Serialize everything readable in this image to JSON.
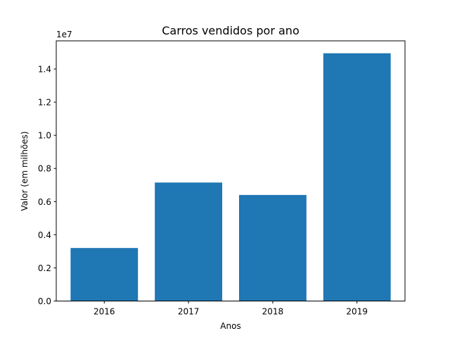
{
  "chart_data": {
    "type": "bar",
    "title": "Carros vendidos por ano",
    "xlabel": "Anos",
    "ylabel": "Valor (em milhões)",
    "y_offset_label": "1e7",
    "categories": [
      "2016",
      "2017",
      "2018",
      "2019"
    ],
    "values": [
      3200000,
      7150000,
      6400000,
      14950000
    ],
    "ylim": [
      0,
      15700000
    ],
    "yticks": [
      0,
      2000000,
      4000000,
      6000000,
      8000000,
      10000000,
      12000000,
      14000000
    ],
    "ytick_labels": [
      "0.0",
      "0.2",
      "0.4",
      "0.6",
      "0.8",
      "1.0",
      "1.2",
      "1.4"
    ],
    "bar_color": "#1f77b4",
    "grid": false,
    "legend": false
  }
}
